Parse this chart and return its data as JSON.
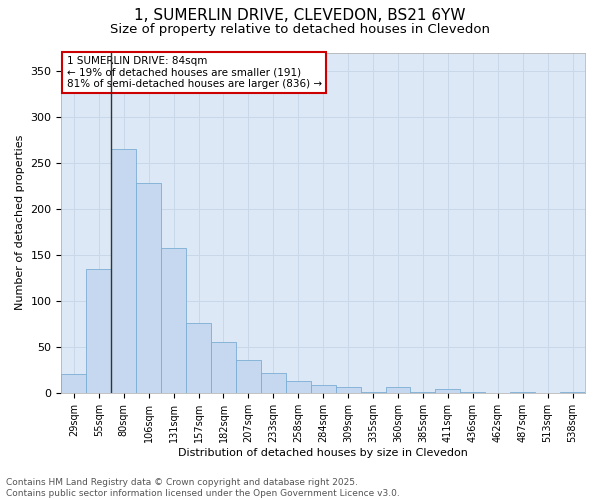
{
  "title_line1": "1, SUMERLIN DRIVE, CLEVEDON, BS21 6YW",
  "title_line2": "Size of property relative to detached houses in Clevedon",
  "xlabel": "Distribution of detached houses by size in Clevedon",
  "ylabel": "Number of detached properties",
  "categories": [
    "29sqm",
    "55sqm",
    "80sqm",
    "106sqm",
    "131sqm",
    "157sqm",
    "182sqm",
    "207sqm",
    "233sqm",
    "258sqm",
    "284sqm",
    "309sqm",
    "335sqm",
    "360sqm",
    "385sqm",
    "411sqm",
    "436sqm",
    "462sqm",
    "487sqm",
    "513sqm",
    "538sqm"
  ],
  "values": [
    21,
    135,
    265,
    228,
    157,
    76,
    55,
    36,
    22,
    13,
    9,
    6,
    1,
    6,
    1,
    4,
    1,
    0,
    1,
    0,
    1
  ],
  "bar_color": "#c5d8ef",
  "bar_edge_color": "#7aadd4",
  "vline_index": 2,
  "vline_color": "#333333",
  "annotation_text": "1 SUMERLIN DRIVE: 84sqm\n← 19% of detached houses are smaller (191)\n81% of semi-detached houses are larger (836) →",
  "annotation_box_edgecolor": "#cc0000",
  "ylim": [
    0,
    370
  ],
  "yticks": [
    0,
    50,
    100,
    150,
    200,
    250,
    300,
    350
  ],
  "grid_color": "#c8d8e8",
  "bg_color": "#dce8f5",
  "fig_bg_color": "#ffffff",
  "footer_line1": "Contains HM Land Registry data © Crown copyright and database right 2025.",
  "footer_line2": "Contains public sector information licensed under the Open Government Licence v3.0."
}
